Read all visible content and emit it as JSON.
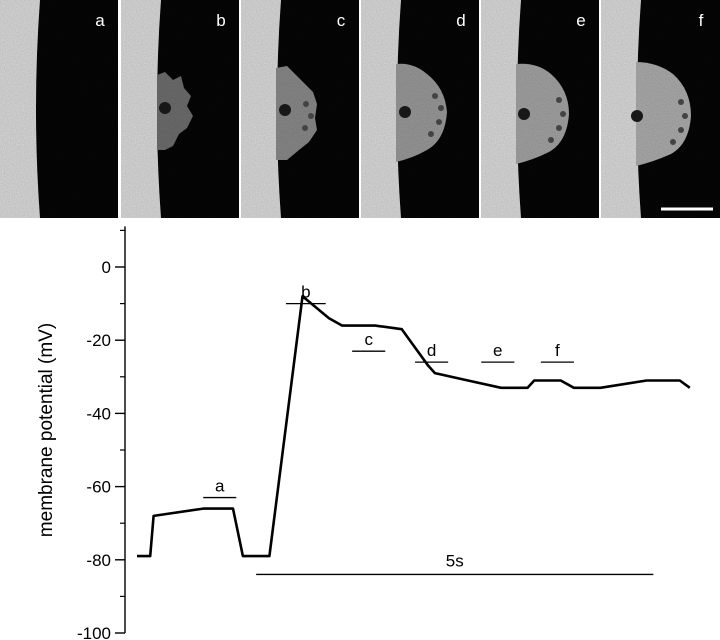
{
  "panels": [
    {
      "label": "a"
    },
    {
      "label": "b"
    },
    {
      "label": "c"
    },
    {
      "label": "d"
    },
    {
      "label": "e"
    },
    {
      "label": "f"
    }
  ],
  "chart_data": {
    "type": "line",
    "title": "",
    "xlabel": "",
    "ylabel": "membrane potential (mV)",
    "ylim": [
      -100,
      10
    ],
    "yticks": [
      0,
      -20,
      -40,
      -60,
      -80,
      -100
    ],
    "x_time_s": [
      0,
      0.2,
      0.25,
      1.0,
      1.1,
      1.45,
      1.6,
      1.62,
      1.8,
      2.0,
      2.5,
      2.9,
      3.1,
      3.6,
      4.0,
      4.2,
      4.4,
      4.5,
      5.0,
      5.5,
      5.9,
      6.0,
      6.4,
      6.6,
      7.0,
      7.7,
      7.8,
      8.2,
      8.35
    ],
    "series": [
      {
        "values": [
          -79,
          -79,
          -68,
          -66,
          -66,
          -66,
          -79,
          -79,
          -79,
          -79,
          -8,
          -14,
          -16,
          -16,
          -17,
          -22,
          -27,
          -29,
          -31,
          -33,
          -33,
          -31,
          -31,
          -33,
          -33,
          -31,
          -31,
          -31,
          -33
        ]
      }
    ],
    "annotations": [
      {
        "text": "a",
        "t_start": 1.0,
        "t_end": 1.5,
        "y": -63
      },
      {
        "text": "b",
        "t_start": 2.25,
        "t_end": 2.85,
        "y": -10
      },
      {
        "text": "c",
        "t_start": 3.25,
        "t_end": 3.75,
        "y": -23
      },
      {
        "text": "d",
        "t_start": 4.2,
        "t_end": 4.7,
        "y": -26
      },
      {
        "text": "e",
        "t_start": 5.2,
        "t_end": 5.7,
        "y": -26
      },
      {
        "text": "f",
        "t_start": 6.1,
        "t_end": 6.6,
        "y": -26
      }
    ],
    "scale_bar": {
      "text": "5s",
      "duration_s": 5,
      "y": -84
    }
  }
}
